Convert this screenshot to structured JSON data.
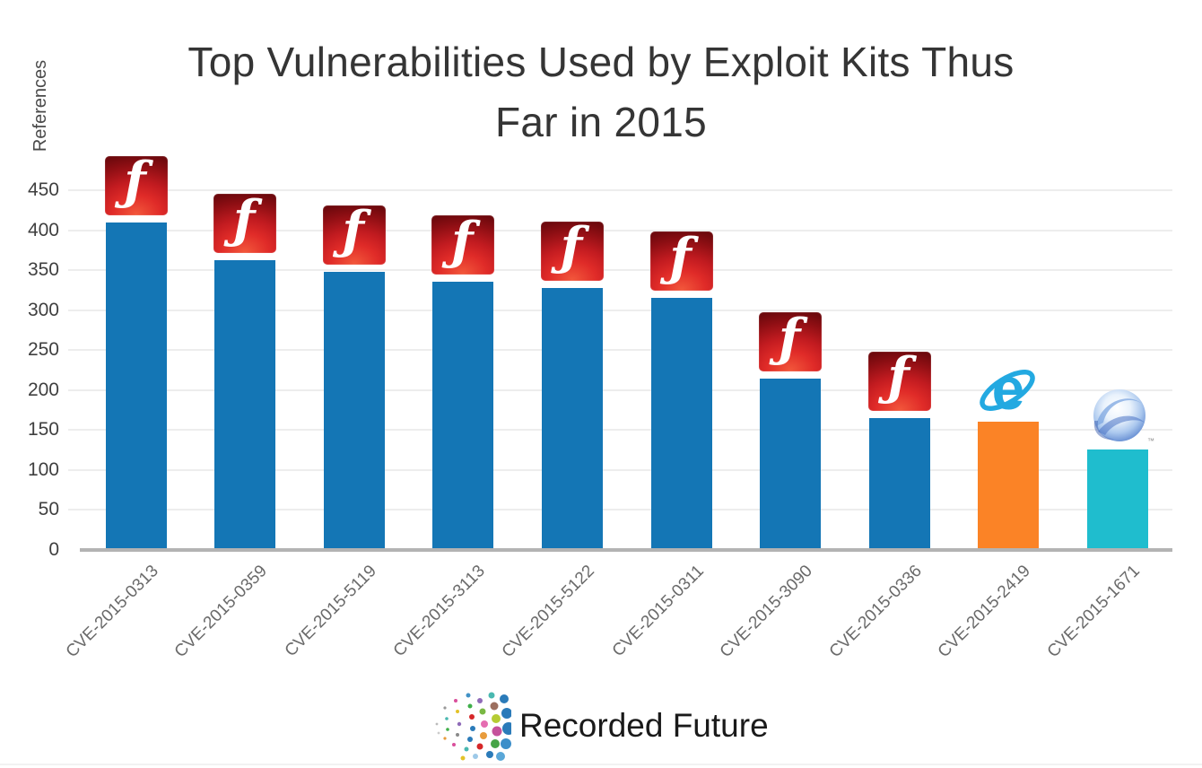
{
  "title": {
    "lines": [
      "Top Vulnerabilities Used by Exploit Kits Thus",
      "Far in 2015"
    ]
  },
  "chart_data": {
    "type": "bar",
    "title": "Top Vulnerabilities Used by Exploit Kits Thus Far in 2015",
    "xlabel": "",
    "ylabel": "References",
    "ylim": [
      0,
      475
    ],
    "yticks": [
      0,
      50,
      100,
      150,
      200,
      250,
      300,
      350,
      400,
      450
    ],
    "grid": true,
    "legend": "none",
    "categories": [
      "CVE-2015-0313",
      "CVE-2015-0359",
      "CVE-2015-5119",
      "CVE-2015-3113",
      "CVE-2015-5122",
      "CVE-2015-0311",
      "CVE-2015-3090",
      "CVE-2015-0336",
      "CVE-2015-2419",
      "CVE-2015-1671"
    ],
    "values": [
      410,
      362,
      348,
      335,
      328,
      315,
      214,
      165,
      160,
      126
    ],
    "bar_colors": [
      "#1476b5",
      "#1476b5",
      "#1476b5",
      "#1476b5",
      "#1476b5",
      "#1476b5",
      "#1476b5",
      "#1476b5",
      "#fb8326",
      "#1fbdce"
    ],
    "icons": [
      "flash",
      "flash",
      "flash",
      "flash",
      "flash",
      "flash",
      "flash",
      "flash",
      "internet_explorer",
      "silverlight"
    ]
  },
  "icon_defs": {
    "flash": {
      "name": "flash-icon",
      "glyph": "ƒ"
    },
    "internet_explorer": {
      "name": "internet-explorer-icon",
      "glyph": "e"
    },
    "silverlight": {
      "name": "silverlight-icon"
    }
  },
  "colors": {
    "bar_blue": "#1476b5",
    "bar_orange": "#fb8326",
    "bar_teal": "#1fbdce",
    "gridline": "#ededed",
    "axis_line": "#b3b3b3",
    "y_tick_text": "#3f3f3f",
    "x_tick_text": "#6a6a6a",
    "title_text": "#353535",
    "ylabel_text": "#4a4a4a",
    "flash_red_bright": "#e02b28",
    "flash_red_dark": "#6e090d",
    "ie_blue": "#23a9e1",
    "silverlight_blue": "#5e87cf",
    "brand_text": "#1a1a1a"
  },
  "footer": {
    "brand": "Recorded Future"
  }
}
